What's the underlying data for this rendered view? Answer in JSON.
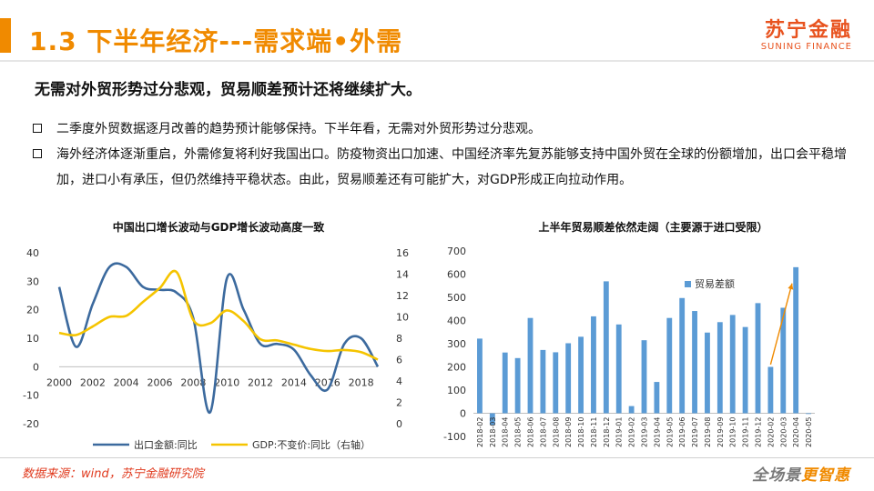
{
  "header": {
    "title": "1.3 下半年经济---需求端•外需",
    "logo_cn": "苏宁金融",
    "logo_en": "SUNING FINANCE"
  },
  "headline": "无需对外贸形势过分悲观，贸易顺差预计还将继续扩大。",
  "bullets": [
    "二季度外贸数据逐月改善的趋势预计能够保持。下半年看，无需对外贸形势过分悲观。",
    "海外经济体逐渐重启，外需修复将利好我国出口。防疫物资出口加速、中国经济率先复苏能够支持中国外贸在全球的份额增加，出口会平稳增加，进口小有承压，但仍然维持平稳状态。由此，贸易顺差还有可能扩大，对GDP形成正向拉动作用。"
  ],
  "footer": {
    "source": "数据来源：wind，苏宁金融研究院",
    "slogan_a": "全场景",
    "slogan_b": "更智惠"
  },
  "colors": {
    "accent": "#f08a00",
    "export_line": "#3c6a9e",
    "gdp_line": "#f5c400",
    "bar": "#5b9bd5"
  },
  "chart_data": [
    {
      "type": "line",
      "title": "中国出口增长波动与GDP增长波动高度一致",
      "xlim": [
        2000,
        2019
      ],
      "xticks": [
        2000,
        2002,
        2004,
        2006,
        2008,
        2010,
        2012,
        2014,
        2016,
        2018
      ],
      "ylim": [
        -20,
        40
      ],
      "yticks": [
        -20,
        -10,
        0,
        10,
        20,
        30,
        40
      ],
      "y2lim": [
        0,
        16
      ],
      "y2ticks": [
        0,
        2,
        4,
        6,
        8,
        10,
        12,
        14,
        16
      ],
      "legend_position": "bottom",
      "series": [
        {
          "name": "出口金额:同比",
          "axis": "left",
          "x": [
            2000,
            2001,
            2002,
            2003,
            2004,
            2005,
            2006,
            2007,
            2008,
            2009,
            2010,
            2011,
            2012,
            2013,
            2014,
            2015,
            2016,
            2017,
            2018,
            2019
          ],
          "y": [
            28,
            7,
            22,
            35,
            35,
            28,
            27,
            26,
            17,
            -16,
            31,
            20,
            8,
            8,
            6,
            -3,
            -8,
            8,
            10,
            0
          ]
        },
        {
          "name": "GDP:不变价:同比（右轴）",
          "axis": "right",
          "x": [
            2000,
            2001,
            2002,
            2003,
            2004,
            2005,
            2006,
            2007,
            2008,
            2009,
            2010,
            2011,
            2012,
            2013,
            2014,
            2015,
            2016,
            2017,
            2018,
            2019
          ],
          "y": [
            8.5,
            8.3,
            9.1,
            10.0,
            10.1,
            11.4,
            12.7,
            14.2,
            9.7,
            9.4,
            10.6,
            9.6,
            7.9,
            7.8,
            7.4,
            7.0,
            6.8,
            6.9,
            6.7,
            6.0
          ]
        }
      ]
    },
    {
      "type": "bar",
      "title": "上半年贸易顺差依然走阔（主要源于进口受限）",
      "ylim": [
        -100,
        700
      ],
      "yticks": [
        -100,
        0,
        100,
        200,
        300,
        400,
        500,
        600,
        700
      ],
      "legend_position": "inside-left",
      "categories": [
        "2018-02",
        "2018-03",
        "2018-04",
        "2018-05",
        "2018-06",
        "2018-07",
        "2018-08",
        "2018-09",
        "2018-10",
        "2018-11",
        "2018-12",
        "2019-01",
        "2019-02",
        "2019-03",
        "2019-04",
        "2019-05",
        "2019-06",
        "2019-07",
        "2019-08",
        "2019-09",
        "2019-10",
        "2019-11",
        "2019-12",
        "2020-02",
        "2020-03",
        "2020-04",
        "2020-05"
      ],
      "series": [
        {
          "name": "贸易差额",
          "values": [
            322,
            -50,
            262,
            238,
            411,
            273,
            263,
            302,
            330,
            418,
            569,
            383,
            31,
            315,
            135,
            411,
            497,
            441,
            348,
            393,
            424,
            372,
            475,
            200,
            455,
            630,
            -2
          ]
        }
      ]
    }
  ]
}
